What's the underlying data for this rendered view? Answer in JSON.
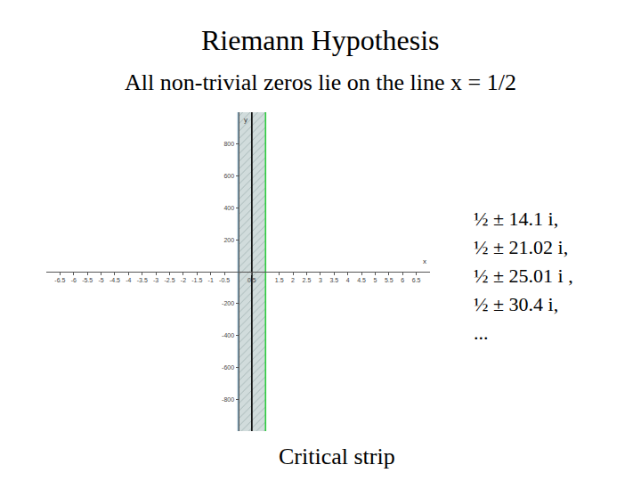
{
  "chart_data": {
    "type": "line",
    "title": "Riemann Hypothesis",
    "subtitle": "All non-trivial zeros lie on the line x = 1/2",
    "caption": "Critical strip",
    "x_label": "x",
    "y_label": "y",
    "xlim": [
      -7,
      7
    ],
    "ylim": [
      -1000,
      1000
    ],
    "xticks": [
      -6.5,
      -6,
      -5.5,
      -5,
      -4.5,
      -4,
      -3.5,
      -3,
      -2.5,
      -2,
      -1.5,
      -1,
      -0.5,
      0.5,
      1.5,
      2,
      2.5,
      3,
      3.5,
      4,
      4.5,
      5,
      5.5,
      6,
      6.5
    ],
    "yticks": [
      -800,
      -600,
      -400,
      -200,
      200,
      400,
      600,
      800
    ],
    "grid": false,
    "band": {
      "x": [
        0,
        1
      ],
      "color": "#c5d3d3"
    },
    "vertical_lines": [
      {
        "x": 0,
        "color": "#7fa3b8"
      },
      {
        "x": 0.5,
        "color": "#000000"
      },
      {
        "x": 1,
        "color": "#2ecc40"
      }
    ],
    "zero_labels": [
      "½ ± 14.1 i,",
      "½ ± 21.02 i,",
      "½ ± 25.01 i ,",
      "½ ± 30.4 i,",
      "..."
    ]
  }
}
